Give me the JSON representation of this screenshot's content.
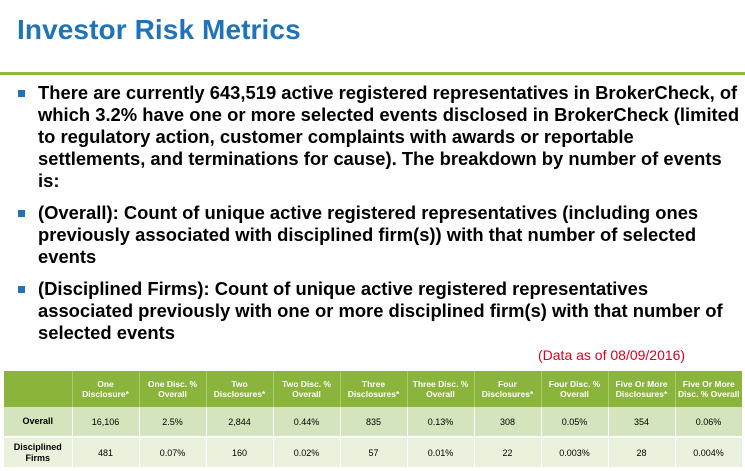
{
  "title": "Investor Risk Metrics",
  "bullets": [
    "There are currently 643,519 active registered representatives in BrokerCheck, of which 3.2% have one or more selected events disclosed in BrokerCheck (limited to regulatory action, customer complaints with awards or reportable settlements, and terminations for cause).  The breakdown by number of events is:",
    "(Overall): Count of unique active registered representatives (including ones previously associated with disciplined firm(s)) with that number of selected events",
    "(Disciplined Firms): Count of unique active registered representatives associated previously with one or more disciplined firm(s) with that number of selected events"
  ],
  "as_of": "(Data as of 08/09/2016)",
  "colors": {
    "title": "#1f73b8",
    "header_green": "#8ab43c",
    "as_of_red": "#e0001b"
  },
  "table": {
    "headers": [
      "",
      "One Disclosure*",
      "One Disc. % Overall",
      "Two Disclosures*",
      "Two Disc. % Overall",
      "Three Disclosures*",
      "Three Disc. % Overall",
      "Four Disclosures*",
      "Four Disc. % Overall",
      "Five Or More Disclosures*",
      "Five Or More Disc. % Overall"
    ],
    "rows": [
      [
        "Overall",
        "16,106",
        "2.5%",
        "2,844",
        "0.44%",
        "835",
        "0.13%",
        "308",
        "0.05%",
        "354",
        "0.06%"
      ],
      [
        "Disciplined Firms",
        "481",
        "0.07%",
        "160",
        "0.02%",
        "57",
        "0.01%",
        "22",
        "0.003%",
        "28",
        "0.004%"
      ]
    ]
  }
}
